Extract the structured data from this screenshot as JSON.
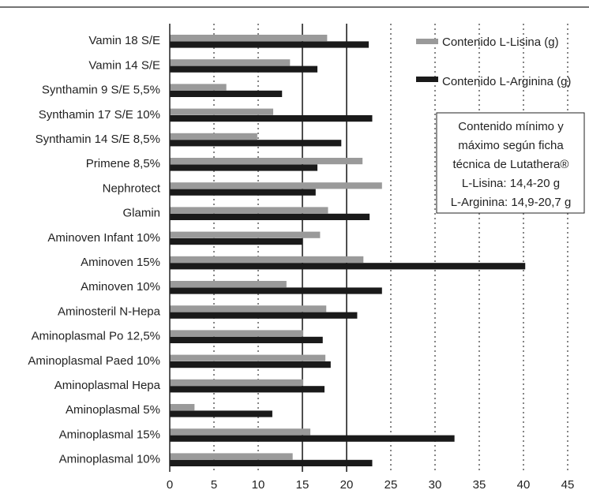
{
  "chart_data": {
    "type": "bar",
    "orientation": "horizontal",
    "categories": [
      "Vamin 18 S/E",
      "Vamin 14 S/E",
      "Synthamin 9 S/E 5,5%",
      "Synthamin 17 S/E 10%",
      "Synthamin 14 S/E 8,5%",
      "Primene 8,5%",
      "Nephrotect",
      "Glamin",
      "Aminoven Infant 10%",
      "Aminoven 15%",
      "Aminoven 10%",
      "Aminosteril N-Hepa",
      "Aminoplasmal Po 12,5%",
      "Aminoplasmal Paed 10%",
      "Aminoplasmal Hepa",
      "Aminoplasmal 5%",
      "Aminoplasmal 15%",
      "Aminoplasmal 10%"
    ],
    "series": [
      {
        "name": "Contenido L-Lisina (g)",
        "color": "#9a9a9a",
        "values": [
          17.8,
          13.6,
          6.4,
          11.7,
          9.9,
          21.8,
          24.0,
          17.9,
          17.0,
          21.9,
          13.2,
          17.7,
          15.1,
          17.6,
          15.1,
          2.8,
          15.9,
          13.9
        ]
      },
      {
        "name": "Contenido L-Arginina (g)",
        "color": "#1a1a1a",
        "values": [
          22.5,
          16.7,
          12.7,
          22.9,
          19.4,
          16.7,
          16.5,
          22.6,
          15.0,
          40.2,
          24.0,
          21.2,
          17.3,
          18.2,
          17.5,
          11.6,
          32.2,
          22.9
        ]
      }
    ],
    "xlim": [
      0,
      45
    ],
    "xticks": [
      "0",
      "5",
      "10",
      "15",
      "20",
      "25",
      "30",
      "35",
      "40",
      "45"
    ],
    "gridlines": {
      "solid": [
        15,
        20
      ],
      "dotted": [
        5,
        10,
        25,
        30,
        35,
        40,
        45
      ]
    },
    "legend": {
      "position": "top-right",
      "items": [
        "Contenido L-Lisina (g)",
        "Contenido L-Arginina (g)"
      ]
    },
    "annotation": {
      "lines": [
        "Contenido mínimo y",
        "máximo según ficha",
        "técnica de Lutathera®",
        "L-Lisina: 14,4-20 g",
        "L-Arginina: 14,9-20,7 g"
      ]
    }
  }
}
